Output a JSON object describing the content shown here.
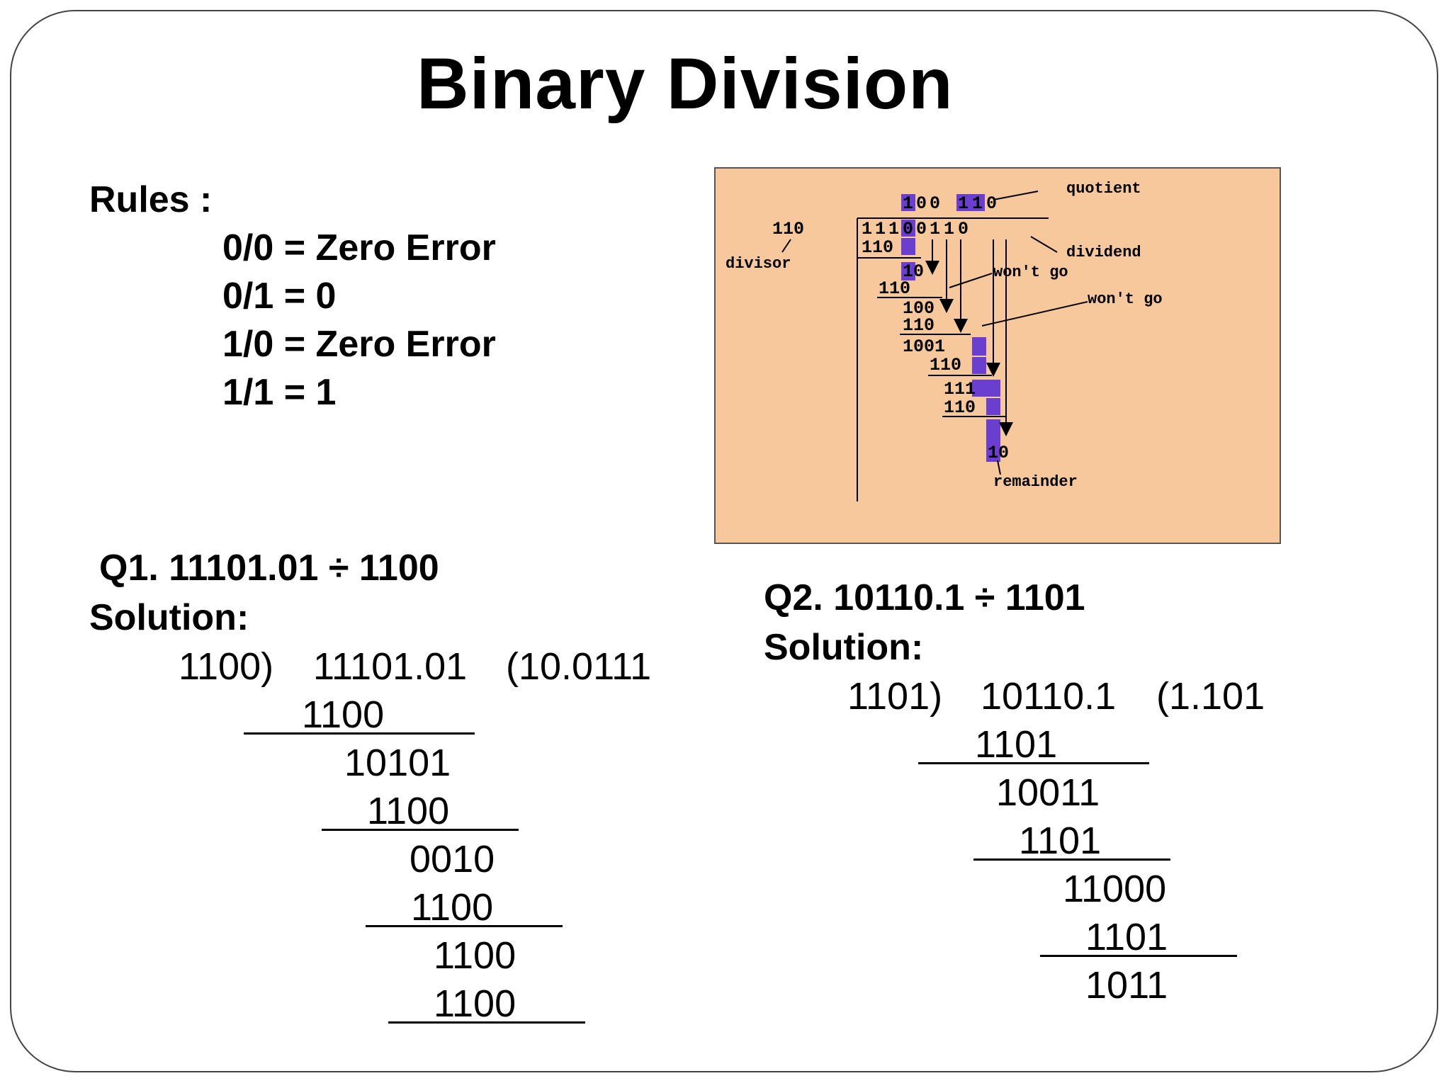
{
  "title": "Binary Division",
  "rules": {
    "heading": "Rules :",
    "items": [
      "0/0 = Zero Error",
      "0/1 = 0",
      "1/0 = Zero Error",
      "1/1 = 1"
    ]
  },
  "diagram": {
    "quotient_digits": [
      "1",
      "0",
      "0",
      "1",
      "1",
      "0"
    ],
    "divisor": "110",
    "dividend_digits": [
      "1",
      "1",
      "1",
      "0",
      "0",
      "1",
      "1",
      "0"
    ],
    "steps": [
      "110",
      "10",
      "110",
      "100",
      "110",
      "1001",
      "110",
      "111",
      "110",
      "10"
    ],
    "labels": {
      "quotient": "quotient",
      "dividend": "dividend",
      "divisor": "divisor",
      "wont_go_1": "won't go",
      "wont_go_2": "won't go",
      "remainder": "remainder"
    }
  },
  "q1": {
    "question": "Q1.  11101.01 ÷ 1100",
    "solution_label": "Solution:",
    "divisor": "1100)",
    "dividend": "11101.01",
    "quotient": "(10.0111",
    "lines": [
      "1100",
      "10101",
      "1100",
      "0010",
      "1100",
      "1100",
      "1100"
    ]
  },
  "q2": {
    "question": "Q2.  10110.1 ÷ 1101",
    "solution_label": "Solution:",
    "divisor": "1101)",
    "dividend": "10110.1",
    "quotient": "(1.101",
    "lines": [
      "1101",
      "10011",
      "1101",
      "11000",
      "1101",
      "1011"
    ]
  },
  "colors": {
    "diagram_bg": "#f7c89b",
    "highlight": "#6a3fd0",
    "text": "#000000"
  }
}
